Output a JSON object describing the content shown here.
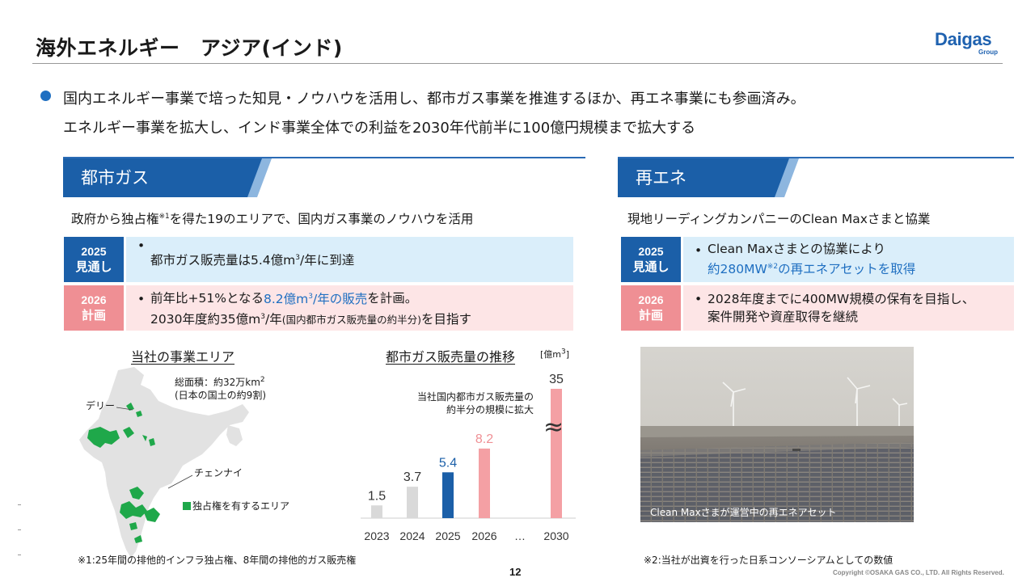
{
  "header": {
    "title": "海外エネルギー　アジア(インド)",
    "logo_main": "Daigas",
    "logo_sub": "Group"
  },
  "lead": {
    "line1": "国内エネルギー事業で培った知見・ノウハウを活用し、都市ガス事業を推進するほか、再エネ事業にも参画済み。",
    "line2": "エネルギー事業を拡大し、インド事業全体での利益を2030年代前半に100億円規模まで拡大する"
  },
  "city_gas": {
    "section_title": "都市ガス",
    "lead_pre": "政府から独占権",
    "lead_note": "※1",
    "lead_post": "を得た19のエリアで、国内ガス事業のノウハウを活用",
    "rows": [
      {
        "year": "2025",
        "kind": "見通し",
        "bullet": "•",
        "text_pre": "都市ガス販売量は5.4億m",
        "sup": "3",
        "text_post": "/年に到達"
      },
      {
        "year": "2026",
        "kind": "計画",
        "bullet": "•",
        "l1_pre": "前年比+51%となる",
        "l1_hl_pre": "8.2億m",
        "l1_hl_sup": "3",
        "l1_hl_post": "/年の販売",
        "l1_post": "を計画。",
        "l2_pre": "2030年度約35億m",
        "l2_sup": "3",
        "l2_mid": "/年",
        "l2_small": "(国内都市ガス販売量の約半分)",
        "l2_post": "を目指す"
      }
    ],
    "map": {
      "title": "当社の事業エリア",
      "area_line1_pre": "総面積：約32万km",
      "area_line1_sup": "2",
      "area_line2": "(日本の国土の約9割)",
      "label_delhi": "デリー",
      "label_chennai": "チェンナイ",
      "legend": "独占権を有するエリア",
      "territory_color": "#1fa84a"
    },
    "chart_title": "都市ガス販売量の推移",
    "chart_unit_pre": "[億m",
    "chart_unit_sup": "3",
    "chart_unit_post": "]",
    "chart_note_line1": "当社国内都市ガス販売量の",
    "chart_note_line2": "約半分の規模に拡大",
    "axis_break": "≈"
  },
  "chart_data": {
    "type": "bar",
    "categories": [
      "2023",
      "2024",
      "2025",
      "2026",
      "…",
      "2030"
    ],
    "values": [
      1.5,
      3.7,
      5.4,
      8.2,
      null,
      35
    ],
    "value_labels": [
      "1.5",
      "3.7",
      "5.4",
      "8.2",
      "",
      "35"
    ],
    "bar_colors": [
      "#d9d9d9",
      "#d9d9d9",
      "#1b5fa8",
      "#f4a0a4",
      "",
      "#f4a0a4"
    ],
    "label_colors": [
      "#333333",
      "#333333",
      "#1b5fa8",
      "#ef8f94",
      "",
      "#333333"
    ],
    "broken_axis": true,
    "title": "都市ガス販売量の推移",
    "ylabel": "億m3"
  },
  "renewables": {
    "section_title": "再エネ",
    "lead": "現地リーディングカンパニーのClean Maxさまと協業",
    "rows": [
      {
        "year": "2025",
        "kind": "見通し",
        "bullet": "•",
        "l1": "Clean Maxさまとの協業により",
        "l2_hl_pre": "約280MW",
        "l2_hl_sup": "※2",
        "l2_hl_post": "の再エネアセットを取得"
      },
      {
        "year": "2026",
        "kind": "計画",
        "bullet": "•",
        "l1": "2028年度までに400MW規模の保有を目指し、",
        "l2": "案件開発や資産取得を継続"
      }
    ],
    "photo_caption": "Clean Maxさまが運営中の再エネアセット"
  },
  "footer": {
    "note1": "※1:25年間の排他的インフラ独占権、8年間の排他的ガス販売権",
    "note2": "※2:当社が出資を行った日系コンソーシアムとしての数値",
    "page": "12",
    "copyright": "Copyright ©OSAKA GAS CO., LTD. All Rights Reserved."
  }
}
